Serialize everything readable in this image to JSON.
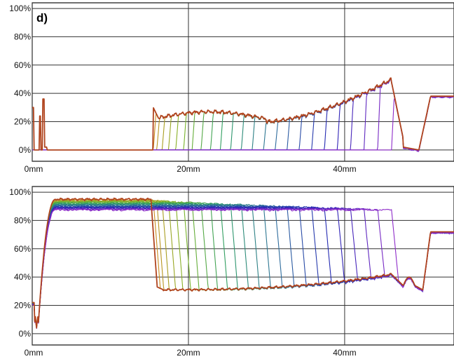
{
  "panel_label": "d)",
  "chart_data": [
    {
      "type": "line",
      "panel": "top",
      "xlabel": "",
      "ylabel": "",
      "x_unit": "mm",
      "x_ticks": [
        "0mm",
        "20mm",
        "40mm"
      ],
      "x_tick_values": [
        0,
        20,
        40
      ],
      "y_ticks": [
        "0%",
        "20%",
        "40%",
        "60%",
        "80%",
        "100%"
      ],
      "y_tick_values": [
        0,
        20,
        40,
        60,
        80,
        100
      ],
      "xlim": [
        0,
        54
      ],
      "ylim": [
        -8,
        104
      ],
      "grid": true,
      "legend": "none",
      "series_count": 24,
      "colormap": [
        "#c98c1e",
        "#7fb527",
        "#2e9e64",
        "#2e6f9c",
        "#2323b4",
        "#8e2bc9"
      ],
      "envelope_color": "#b0441e",
      "envelope_desc": "Thick outer envelope: 0% baseline with spikes near 0-2mm, plateau ~22-30% from 15.5mm rising to ~50% at 46mm, drop to 0%, then ~38% plateau after 51mm",
      "description": "Family of profile curves; each colored curve shares the envelope from a switch-on position (15.5mm to 46mm) onward, starting from 0% before it"
    },
    {
      "type": "line",
      "panel": "bottom",
      "xlabel": "",
      "ylabel": "",
      "x_unit": "mm",
      "x_ticks": [
        "0mm",
        "20mm",
        "40mm"
      ],
      "x_tick_values": [
        0,
        20,
        40
      ],
      "y_ticks": [
        "0%",
        "20%",
        "40%",
        "60%",
        "80%",
        "100%"
      ],
      "y_tick_values": [
        0,
        20,
        40,
        60,
        80,
        100
      ],
      "xlim": [
        0,
        54
      ],
      "ylim": [
        -8,
        104
      ],
      "grid": true,
      "legend": "none",
      "series_count": 24,
      "colormap": [
        "#c98c1e",
        "#7fb527",
        "#2e9e64",
        "#2e6f9c",
        "#2323b4",
        "#8e2bc9"
      ],
      "envelope_color": "#b0441e",
      "envelope_desc": "Rises from ~8% at 0.5mm to ~95% plateau by 3mm, drops at ~15.5mm to ~31%, slowly rises to ~42% near 46mm, small bumps near 49mm, then ~72% plateau after 51mm",
      "description": "Family of profile curves; each colored curve holds ~88-95% until its own drop position (15.5mm to 46mm) and then follows the lower envelope"
    }
  ]
}
